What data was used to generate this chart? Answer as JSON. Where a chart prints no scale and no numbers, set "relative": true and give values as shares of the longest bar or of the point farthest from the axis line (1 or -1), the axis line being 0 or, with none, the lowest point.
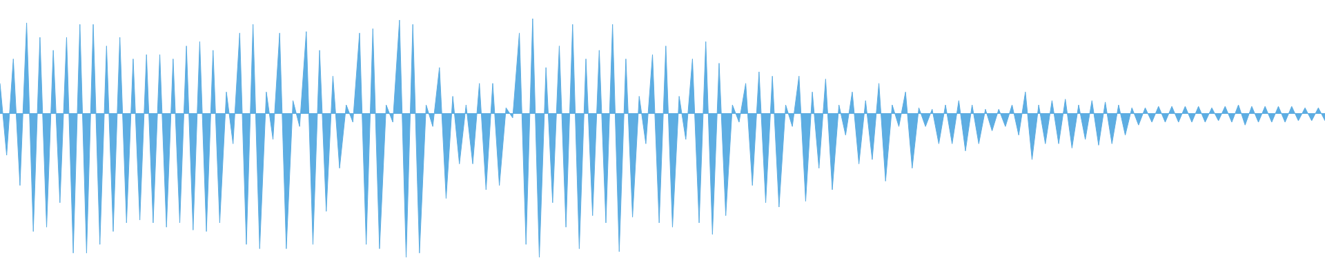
{
  "chart_data": {
    "type": "area",
    "relative": true,
    "color": "#5dade2",
    "categories": [
      null,
      null,
      null,
      null,
      null,
      null,
      null,
      null,
      null,
      null,
      null,
      null,
      null,
      null,
      null,
      null,
      null,
      null,
      null,
      null,
      null,
      null,
      null,
      null,
      null,
      null,
      null,
      null,
      null,
      null,
      null,
      null,
      null,
      null,
      null,
      null,
      null,
      null,
      null,
      null,
      null,
      null,
      null,
      null,
      null,
      null,
      null,
      null,
      null,
      null,
      null,
      null,
      null,
      null,
      null,
      null,
      null,
      null,
      null,
      null,
      null,
      null,
      null,
      null,
      null,
      null,
      null,
      null,
      null,
      null,
      null,
      null,
      null,
      null,
      null,
      null,
      null,
      null,
      null,
      null,
      null,
      null,
      null,
      null,
      null,
      null,
      null,
      null,
      null,
      null,
      null,
      null,
      null,
      null,
      null,
      null,
      null,
      null,
      null,
      null,
      null,
      null,
      null,
      null,
      null,
      null,
      null,
      null,
      null,
      null,
      null,
      null,
      null,
      null,
      null,
      null,
      null,
      null,
      null,
      null,
      null,
      null,
      null,
      null,
      null,
      null,
      null,
      null,
      null,
      null,
      null,
      null,
      null,
      null,
      null,
      null,
      null,
      null,
      null,
      null,
      null,
      null,
      null,
      null,
      null,
      null,
      null,
      null,
      null,
      null,
      null,
      null,
      null,
      null,
      null,
      null,
      null,
      null,
      null,
      null,
      null,
      null,
      null,
      null,
      null,
      null,
      null,
      null,
      null,
      null,
      null,
      null,
      null,
      null,
      null,
      null,
      null,
      null,
      null,
      null,
      null,
      null,
      null,
      null,
      null,
      null,
      null,
      null,
      null,
      null,
      null,
      null,
      null,
      null,
      null,
      null,
      null,
      null,
      null,
      null
    ],
    "values": [
      0.21,
      -0.29,
      0.38,
      -0.5,
      0.63,
      -0.82,
      0.53,
      -0.79,
      0.44,
      -0.62,
      0.53,
      -0.97,
      0.62,
      -0.97,
      0.62,
      -0.91,
      0.47,
      -0.82,
      0.53,
      -0.76,
      0.38,
      -0.74,
      0.41,
      -0.76,
      0.41,
      -0.79,
      0.38,
      -0.76,
      0.47,
      -0.81,
      0.5,
      -0.82,
      0.44,
      -0.76,
      0.15,
      -0.21,
      0.56,
      -0.91,
      0.62,
      -0.94,
      0.15,
      -0.18,
      0.56,
      -0.94,
      0.09,
      -0.09,
      0.57,
      -0.91,
      0.44,
      -0.68,
      0.26,
      -0.38,
      0.06,
      -0.06,
      0.56,
      -0.91,
      0.59,
      -0.94,
      0.06,
      -0.06,
      0.65,
      -1,
      0.62,
      -0.97,
      0.06,
      -0.09,
      0.32,
      -0.59,
      0.12,
      -0.35,
      0.06,
      -0.35,
      0.21,
      -0.53,
      0.21,
      -0.5,
      0.04,
      -0.03,
      0.56,
      -0.91,
      0.66,
      -1,
      0.32,
      -0.62,
      0.47,
      -0.79,
      0.62,
      -0.94,
      0.38,
      -0.71,
      0.44,
      -0.76,
      0.62,
      -0.96,
      0.38,
      -0.72,
      0.12,
      -0.21,
      0.41,
      -0.76,
      0.47,
      -0.79,
      0.12,
      -0.18,
      0.38,
      -0.76,
      0.5,
      -0.84,
      0.35,
      -0.71,
      0.06,
      -0.06,
      0.21,
      -0.5,
      0.29,
      -0.62,
      0.26,
      -0.65,
      0.06,
      -0.09,
      0.26,
      -0.61,
      0.15,
      -0.38,
      0.24,
      -0.53,
      0.06,
      -0.15,
      0.15,
      -0.35,
      0.09,
      -0.32,
      0.21,
      -0.47,
      0.06,
      -0.09,
      0.15,
      -0.38,
      0.04,
      -0.09,
      0.03,
      -0.21,
      0.06,
      -0.21,
      0.09,
      -0.26,
      0.06,
      -0.21,
      0.03,
      -0.12,
      0.03,
      -0.09,
      0.06,
      -0.15,
      0.15,
      -0.32,
      0.06,
      -0.21,
      0.09,
      -0.21,
      0.1,
      -0.24,
      0.06,
      -0.18,
      0.09,
      -0.22,
      0.08,
      -0.21,
      0.06,
      -0.15,
      0.04,
      -0.08,
      0.04,
      -0.06,
      0.05,
      -0.06,
      0.05,
      -0.06,
      0.05,
      -0.06,
      0.05,
      -0.06,
      0.04,
      -0.05,
      0.05,
      -0.06,
      0.06,
      -0.08,
      0.05,
      -0.06,
      0.05,
      -0.06,
      0.05,
      -0.06,
      0.05,
      -0.05,
      0.04,
      -0.05,
      0.04,
      -0.05
    ]
  }
}
